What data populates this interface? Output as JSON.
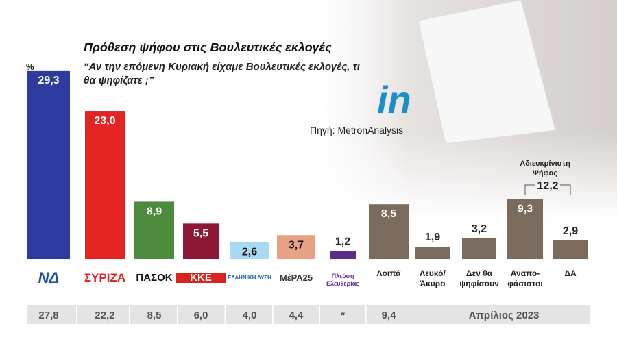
{
  "chart_data": {
    "type": "bar",
    "title": "Πρόθεση ψήφου στις Βουλευτικές εκλογές",
    "subtitle": "“Αν την επόμενη Κυριακή είχαμε Βουλευτικές εκλογές, τι θα ψηφίζατε ;”",
    "unit": "%",
    "brand": "in",
    "source": "Πηγή: MetronAnalysis",
    "categories": [
      "ΝΔ",
      "ΣΥΡΙΖΑ",
      "ΠΑΣΟΚ",
      "ΚΚΕ",
      "ΕΛΛΗΝΙΚΗ ΛΥΣΗ",
      "ΜέΡΑ25",
      "Πλεύση Ελευθερίας",
      "Λοιπά",
      "Λευκό/ Άκυρο",
      "Δεν θα ψηφίσουν",
      "Αναπο- φάσιστοι",
      "ΔΑ"
    ],
    "values": [
      29.3,
      23.0,
      8.9,
      5.5,
      2.6,
      3.7,
      1.2,
      8.5,
      1.9,
      3.2,
      9.3,
      2.9
    ],
    "value_labels": [
      "29,3",
      "23,0",
      "8,9",
      "5,5",
      "2,6",
      "3,7",
      "1,2",
      "8,5",
      "1,9",
      "3,2",
      "9,3",
      "2,9"
    ],
    "colors": [
      "#2d3a9e",
      "#e42420",
      "#4c8a3c",
      "#8c1633",
      "#a9d9f2",
      "#e9a184",
      "#5c2a88",
      "#7b6b5c",
      "#7b6b5c",
      "#7b6b5c",
      "#7b6b5c",
      "#7b6b5c"
    ],
    "group_annotation": {
      "label": "Αδιευκρίνιστη Ψήφος",
      "value": 12.2,
      "value_label": "12,2"
    },
    "previous": {
      "values": [
        27.8,
        22.2,
        8.5,
        6.0,
        4.0,
        4.4,
        null,
        9.4
      ],
      "value_labels": [
        "27,8",
        "22,2",
        "8,5",
        "6,0",
        "4,0",
        "4,4",
        "*",
        "9,4"
      ]
    },
    "period": "Απρίλιος 2023"
  }
}
